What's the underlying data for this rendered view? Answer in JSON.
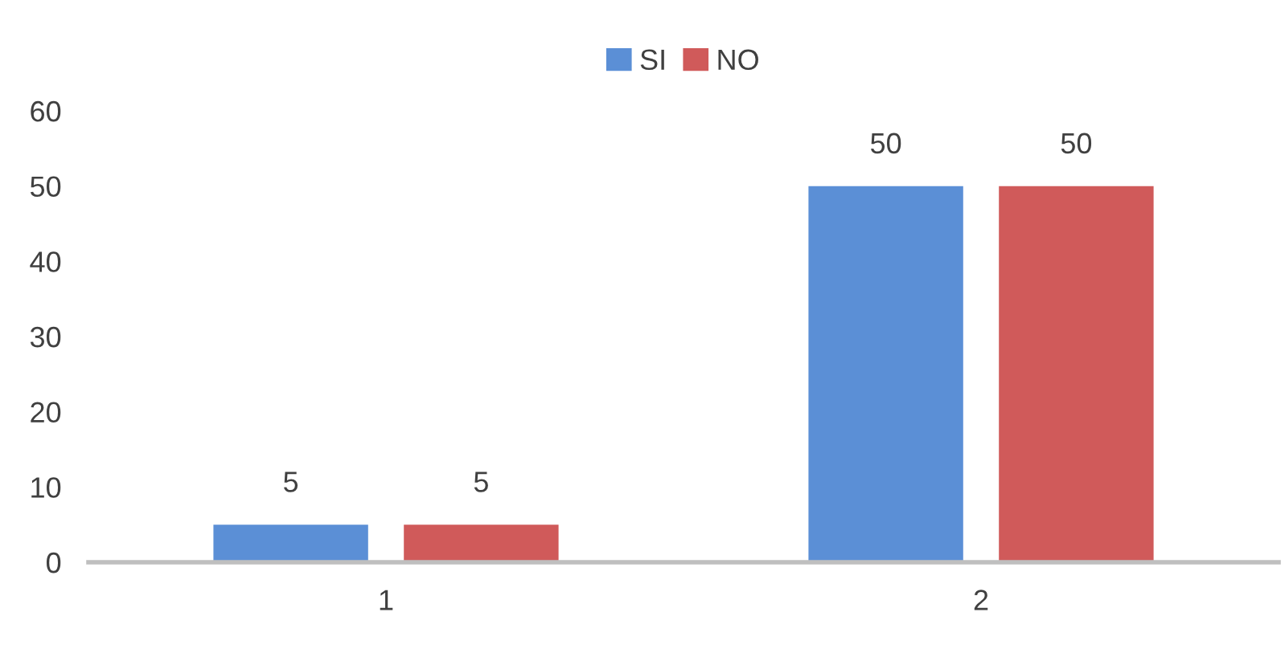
{
  "chart_data": {
    "type": "bar",
    "categories": [
      "1",
      "2"
    ],
    "series": [
      {
        "name": "SI",
        "color": "#5b8fd6",
        "values": [
          5,
          50
        ]
      },
      {
        "name": "NO",
        "color": "#d05a5a",
        "values": [
          5,
          50
        ]
      }
    ],
    "ylim": [
      0,
      60
    ],
    "yticks": [
      0,
      10,
      20,
      30,
      40,
      50,
      60
    ],
    "grid": false,
    "legend": "top",
    "data_labels": true
  }
}
